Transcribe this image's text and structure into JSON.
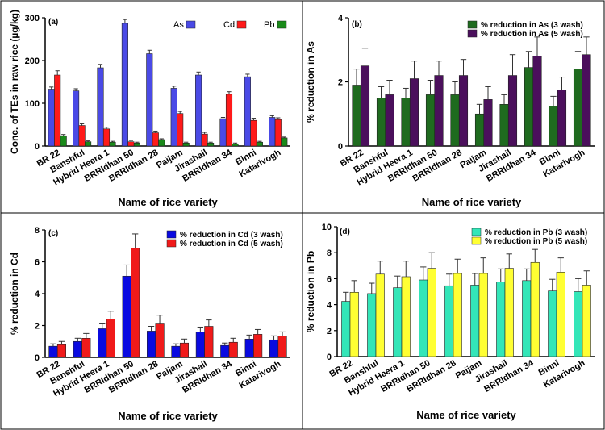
{
  "chart_data": [
    {
      "panel": "(a)",
      "type": "bar",
      "categories": [
        "BR 22",
        "Banshful",
        "Hybrid Heera 1",
        "BRRIdhan 50",
        "BRRIdhan 28",
        "Paijam",
        "Jirashail",
        "BRRIdhan 34",
        "Binni",
        "Katarivogh"
      ],
      "ylabel": "Conc. of TEs in raw rice (µg/kg)",
      "xlabel": "Name of rice variety",
      "ylim": [
        0,
        300
      ],
      "yticks": [
        0,
        100,
        200,
        300
      ],
      "legend_position": "top-right",
      "series": [
        {
          "name": "As",
          "color": "#4a4ae6",
          "values": [
            133,
            129,
            183,
            287,
            216,
            135,
            166,
            64,
            162,
            67
          ],
          "errors": [
            5,
            5,
            8,
            9,
            8,
            5,
            7,
            3,
            6,
            4
          ]
        },
        {
          "name": "Cd",
          "color": "#ff1a1a",
          "values": [
            166,
            48,
            40,
            10,
            31,
            76,
            28,
            121,
            60,
            62
          ],
          "errors": [
            10,
            4,
            4,
            3,
            4,
            5,
            4,
            6,
            5,
            4
          ]
        },
        {
          "name": "Pb",
          "color": "#1a8a1a",
          "values": [
            24,
            10,
            9,
            7,
            15,
            7,
            7,
            5,
            9,
            19
          ],
          "errors": [
            3,
            2,
            2,
            2,
            2,
            2,
            2,
            2,
            2,
            2
          ]
        }
      ]
    },
    {
      "panel": "(b)",
      "type": "bar",
      "categories": [
        "BR 22",
        "Banshful",
        "Hybrid Heera 1",
        "BRRIdhan 50",
        "BRRIdhan 28",
        "Paijam",
        "Jirashail",
        "BRRIdhan 34",
        "Binni",
        "Katarivogh"
      ],
      "ylabel": "% reduction in As",
      "xlabel": "Name of rice variety",
      "ylim": [
        0,
        4
      ],
      "yticks": [
        0,
        2,
        4
      ],
      "legend_position": "top-right",
      "series": [
        {
          "name": "% reduction in As (3 wash)",
          "color": "#1f6b1f",
          "values": [
            1.9,
            1.5,
            1.5,
            1.6,
            1.6,
            1.0,
            1.3,
            2.45,
            1.25,
            2.4
          ],
          "errors": [
            0.5,
            0.35,
            0.3,
            0.45,
            0.4,
            0.3,
            0.3,
            0.5,
            0.3,
            0.55
          ]
        },
        {
          "name": "% reduction in As (5 wash)",
          "color": "#4b0f5c",
          "values": [
            2.5,
            1.6,
            2.1,
            2.2,
            2.2,
            1.45,
            2.2,
            2.8,
            1.75,
            2.85
          ],
          "errors": [
            0.55,
            0.45,
            0.55,
            0.45,
            0.5,
            0.4,
            0.65,
            0.6,
            0.4,
            0.55
          ]
        }
      ]
    },
    {
      "panel": "(c)",
      "type": "bar",
      "categories": [
        "BR 22",
        "Banshful",
        "Hybrid Heera 1",
        "BRRIdhan 50",
        "BRRIdhan 28",
        "Paijam",
        "Jirashail",
        "BRRIdhan 34",
        "Binni",
        "Katarivogh"
      ],
      "ylabel": "% reduction in Cd",
      "xlabel": "Name of rice variety",
      "ylim": [
        0,
        8
      ],
      "yticks": [
        0,
        2,
        4,
        6,
        8
      ],
      "legend_position": "top-right",
      "series": [
        {
          "name": "% reduction in Cd (3 wash)",
          "color": "#0a0ae0",
          "values": [
            0.7,
            1.0,
            1.8,
            5.1,
            1.65,
            0.7,
            1.6,
            0.75,
            1.15,
            1.1
          ],
          "errors": [
            0.15,
            0.2,
            0.35,
            0.7,
            0.3,
            0.15,
            0.3,
            0.15,
            0.25,
            0.25
          ]
        },
        {
          "name": "% reduction in Cd (5 wash)",
          "color": "#f01a1a",
          "values": [
            0.8,
            1.2,
            2.4,
            6.85,
            2.15,
            0.9,
            1.95,
            0.95,
            1.45,
            1.35
          ],
          "errors": [
            0.2,
            0.3,
            0.5,
            0.9,
            0.5,
            0.25,
            0.4,
            0.25,
            0.3,
            0.25
          ]
        }
      ]
    },
    {
      "panel": "(d)",
      "type": "bar",
      "categories": [
        "BR 22",
        "Banshful",
        "Hybrid Heera 1",
        "BRRIdhan 50",
        "BRRIdhan 28",
        "Paijam",
        "Jirashail",
        "BRRIdhan 34",
        "Binni",
        "Katarivogh"
      ],
      "ylabel": "% reduction in Pb",
      "xlabel": "Name of rice variety",
      "ylim": [
        0,
        10
      ],
      "yticks": [
        0,
        2,
        4,
        6,
        8,
        10
      ],
      "legend_position": "top-right",
      "series": [
        {
          "name": "% reduction in Pb (3 wash)",
          "color": "#33e6b8",
          "values": [
            4.25,
            4.85,
            5.3,
            5.9,
            5.45,
            5.5,
            5.75,
            5.85,
            5.05,
            5.0
          ],
          "errors": [
            0.7,
            0.8,
            0.9,
            1.0,
            0.9,
            0.9,
            1.0,
            0.9,
            0.9,
            1.0
          ]
        },
        {
          "name": "% reduction in Pb (5 wash)",
          "color": "#ffff33",
          "values": [
            4.95,
            6.35,
            6.15,
            6.8,
            6.4,
            6.4,
            6.8,
            7.25,
            6.5,
            5.5
          ],
          "errors": [
            0.9,
            1.0,
            1.2,
            1.2,
            1.1,
            1.2,
            1.1,
            1.0,
            1.1,
            1.1
          ]
        }
      ]
    }
  ]
}
